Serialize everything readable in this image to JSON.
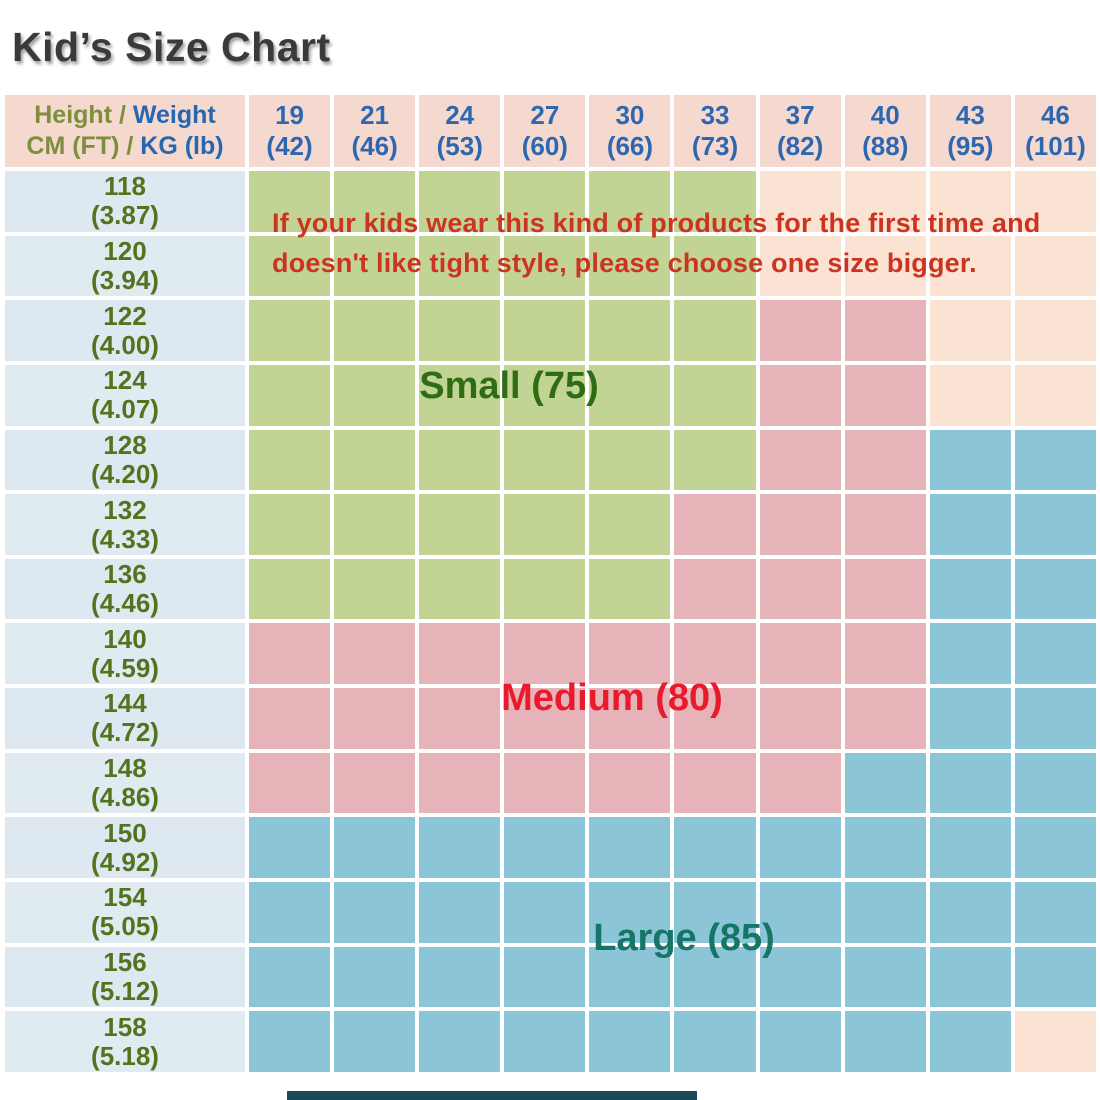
{
  "title": "Kid’s Size Chart",
  "chart_data": {
    "type": "table",
    "title": "Kid’s Size Chart",
    "corner": {
      "height_label": "Height /",
      "weight_label": "Weight",
      "cm_label": "CM (FT) /",
      "kg_label": "KG (lb)"
    },
    "columns_kg": [
      "19",
      "21",
      "24",
      "27",
      "30",
      "33",
      "37",
      "40",
      "43",
      "46"
    ],
    "columns_lb": [
      "(42)",
      "(46)",
      "(53)",
      "(60)",
      "(66)",
      "(73)",
      "(82)",
      "(88)",
      "(95)",
      "(101)"
    ],
    "rows_cm": [
      "118",
      "120",
      "122",
      "124",
      "128",
      "132",
      "136",
      "140",
      "144",
      "148",
      "150",
      "154",
      "156",
      "158"
    ],
    "rows_ft": [
      "(3.87)",
      "(3.94)",
      "(4.00)",
      "(4.07)",
      "(4.20)",
      "(4.33)",
      "(4.46)",
      "(4.59)",
      "(4.72)",
      "(4.86)",
      "(4.92)",
      "(5.05)",
      "(5.12)",
      "(5.18)"
    ],
    "size_matrix": [
      [
        "small",
        "small",
        "small",
        "small",
        "small",
        "small",
        "none",
        "none",
        "none",
        "none"
      ],
      [
        "small",
        "small",
        "small",
        "small",
        "small",
        "small",
        "none",
        "none",
        "none",
        "none"
      ],
      [
        "small",
        "small",
        "small",
        "small",
        "small",
        "small",
        "medium",
        "medium",
        "none",
        "none"
      ],
      [
        "small",
        "small",
        "small",
        "small",
        "small",
        "small",
        "medium",
        "medium",
        "none",
        "none"
      ],
      [
        "small",
        "small",
        "small",
        "small",
        "small",
        "small",
        "medium",
        "medium",
        "large",
        "large"
      ],
      [
        "small",
        "small",
        "small",
        "small",
        "small",
        "medium",
        "medium",
        "medium",
        "large",
        "large"
      ],
      [
        "small",
        "small",
        "small",
        "small",
        "small",
        "medium",
        "medium",
        "medium",
        "large",
        "large"
      ],
      [
        "medium",
        "medium",
        "medium",
        "medium",
        "medium",
        "medium",
        "medium",
        "medium",
        "large",
        "large"
      ],
      [
        "medium",
        "medium",
        "medium",
        "medium",
        "medium",
        "medium",
        "medium",
        "medium",
        "large",
        "large"
      ],
      [
        "medium",
        "medium",
        "medium",
        "medium",
        "medium",
        "medium",
        "medium",
        "large",
        "large",
        "large"
      ],
      [
        "large",
        "large",
        "large",
        "large",
        "large",
        "large",
        "large",
        "large",
        "large",
        "large"
      ],
      [
        "large",
        "large",
        "large",
        "large",
        "large",
        "large",
        "large",
        "large",
        "large",
        "large"
      ],
      [
        "large",
        "large",
        "large",
        "large",
        "large",
        "large",
        "large",
        "large",
        "large",
        "large"
      ],
      [
        "large",
        "large",
        "large",
        "large",
        "large",
        "large",
        "large",
        "large",
        "large",
        "none"
      ]
    ],
    "sizes": {
      "small": "Small (75)",
      "medium": "Medium (80)",
      "large": "Large (85)"
    },
    "note_line1": "If your kids wear this kind of products for the first time and",
    "note_line2": "doesn't like tight style, please choose one size bigger."
  },
  "colors": {
    "small_green": "#c2d493",
    "medium_rose": "#e6b3b9",
    "large_blue": "#8dc5d8",
    "unshaded_peach": "#fbe3d3",
    "header_pink": "#f5d8ce",
    "label_column_blue": "#e0eaf1",
    "header_text_blue": "#2e67b1",
    "header_text_olive": "#7d8e3d",
    "row_label_olive": "#55731e",
    "small_label_green": "#2f6d15",
    "medium_label_red": "#e81a2b",
    "large_label_teal": "#177568",
    "note_red": "#cc3422",
    "title_gray": "#3a3a3a",
    "bottom_strip": "#1a4a57"
  }
}
